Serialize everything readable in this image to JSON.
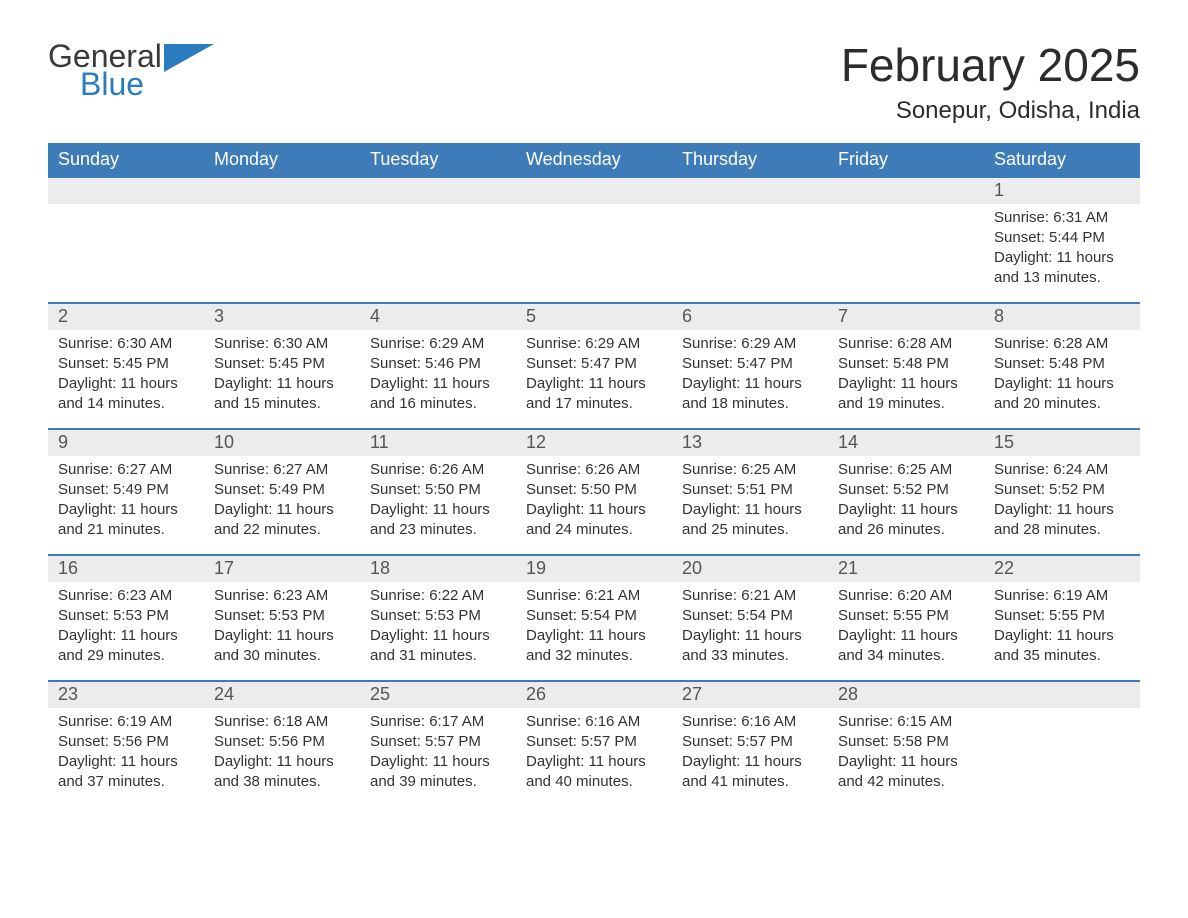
{
  "logo": {
    "word1": "General",
    "word2": "Blue",
    "color_gray": "#3a3a3a",
    "color_blue": "#2b7bbf"
  },
  "title": "February 2025",
  "subtitle": "Sonepur, Odisha, India",
  "colors": {
    "header_bg": "#3d7cb8",
    "header_fg": "#ffffff",
    "daynum_bg": "#ececec",
    "daynum_fg": "#555555",
    "text": "#333333",
    "week_border": "#3d7cb8",
    "page_bg": "#ffffff"
  },
  "weekdays": [
    "Sunday",
    "Monday",
    "Tuesday",
    "Wednesday",
    "Thursday",
    "Friday",
    "Saturday"
  ],
  "weeks": [
    [
      null,
      null,
      null,
      null,
      null,
      null,
      {
        "n": "1",
        "sunrise": "6:31 AM",
        "sunset": "5:44 PM",
        "daylight": "11 hours and 13 minutes."
      }
    ],
    [
      {
        "n": "2",
        "sunrise": "6:30 AM",
        "sunset": "5:45 PM",
        "daylight": "11 hours and 14 minutes."
      },
      {
        "n": "3",
        "sunrise": "6:30 AM",
        "sunset": "5:45 PM",
        "daylight": "11 hours and 15 minutes."
      },
      {
        "n": "4",
        "sunrise": "6:29 AM",
        "sunset": "5:46 PM",
        "daylight": "11 hours and 16 minutes."
      },
      {
        "n": "5",
        "sunrise": "6:29 AM",
        "sunset": "5:47 PM",
        "daylight": "11 hours and 17 minutes."
      },
      {
        "n": "6",
        "sunrise": "6:29 AM",
        "sunset": "5:47 PM",
        "daylight": "11 hours and 18 minutes."
      },
      {
        "n": "7",
        "sunrise": "6:28 AM",
        "sunset": "5:48 PM",
        "daylight": "11 hours and 19 minutes."
      },
      {
        "n": "8",
        "sunrise": "6:28 AM",
        "sunset": "5:48 PM",
        "daylight": "11 hours and 20 minutes."
      }
    ],
    [
      {
        "n": "9",
        "sunrise": "6:27 AM",
        "sunset": "5:49 PM",
        "daylight": "11 hours and 21 minutes."
      },
      {
        "n": "10",
        "sunrise": "6:27 AM",
        "sunset": "5:49 PM",
        "daylight": "11 hours and 22 minutes."
      },
      {
        "n": "11",
        "sunrise": "6:26 AM",
        "sunset": "5:50 PM",
        "daylight": "11 hours and 23 minutes."
      },
      {
        "n": "12",
        "sunrise": "6:26 AM",
        "sunset": "5:50 PM",
        "daylight": "11 hours and 24 minutes."
      },
      {
        "n": "13",
        "sunrise": "6:25 AM",
        "sunset": "5:51 PM",
        "daylight": "11 hours and 25 minutes."
      },
      {
        "n": "14",
        "sunrise": "6:25 AM",
        "sunset": "5:52 PM",
        "daylight": "11 hours and 26 minutes."
      },
      {
        "n": "15",
        "sunrise": "6:24 AM",
        "sunset": "5:52 PM",
        "daylight": "11 hours and 28 minutes."
      }
    ],
    [
      {
        "n": "16",
        "sunrise": "6:23 AM",
        "sunset": "5:53 PM",
        "daylight": "11 hours and 29 minutes."
      },
      {
        "n": "17",
        "sunrise": "6:23 AM",
        "sunset": "5:53 PM",
        "daylight": "11 hours and 30 minutes."
      },
      {
        "n": "18",
        "sunrise": "6:22 AM",
        "sunset": "5:53 PM",
        "daylight": "11 hours and 31 minutes."
      },
      {
        "n": "19",
        "sunrise": "6:21 AM",
        "sunset": "5:54 PM",
        "daylight": "11 hours and 32 minutes."
      },
      {
        "n": "20",
        "sunrise": "6:21 AM",
        "sunset": "5:54 PM",
        "daylight": "11 hours and 33 minutes."
      },
      {
        "n": "21",
        "sunrise": "6:20 AM",
        "sunset": "5:55 PM",
        "daylight": "11 hours and 34 minutes."
      },
      {
        "n": "22",
        "sunrise": "6:19 AM",
        "sunset": "5:55 PM",
        "daylight": "11 hours and 35 minutes."
      }
    ],
    [
      {
        "n": "23",
        "sunrise": "6:19 AM",
        "sunset": "5:56 PM",
        "daylight": "11 hours and 37 minutes."
      },
      {
        "n": "24",
        "sunrise": "6:18 AM",
        "sunset": "5:56 PM",
        "daylight": "11 hours and 38 minutes."
      },
      {
        "n": "25",
        "sunrise": "6:17 AM",
        "sunset": "5:57 PM",
        "daylight": "11 hours and 39 minutes."
      },
      {
        "n": "26",
        "sunrise": "6:16 AM",
        "sunset": "5:57 PM",
        "daylight": "11 hours and 40 minutes."
      },
      {
        "n": "27",
        "sunrise": "6:16 AM",
        "sunset": "5:57 PM",
        "daylight": "11 hours and 41 minutes."
      },
      {
        "n": "28",
        "sunrise": "6:15 AM",
        "sunset": "5:58 PM",
        "daylight": "11 hours and 42 minutes."
      },
      null
    ]
  ],
  "labels": {
    "sunrise_prefix": "Sunrise: ",
    "sunset_prefix": "Sunset: ",
    "daylight_prefix": "Daylight: "
  }
}
